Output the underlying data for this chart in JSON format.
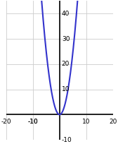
{
  "xlim": [
    -20,
    20
  ],
  "ylim": [
    -10,
    45
  ],
  "xticks": [
    -20,
    -10,
    10,
    20
  ],
  "yticks": [
    10,
    20,
    30,
    40
  ],
  "xticks_negative_label": [
    -10
  ],
  "ytick_neg": [
    -10
  ],
  "curve_color": "#3333cc",
  "curve_linewidth": 1.5,
  "background_color": "#ffffff",
  "grid_color": "#cccccc",
  "grid_linewidth": 0.6,
  "axis_color": "#000000",
  "axis_linewidth": 1.2,
  "x_start": -12.5,
  "x_end": 7.5,
  "font_size": 6.5
}
